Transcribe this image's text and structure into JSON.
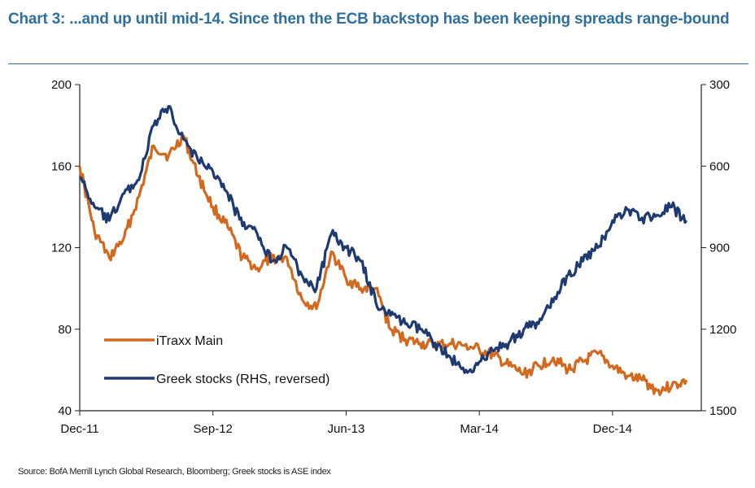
{
  "title": "Chart 3: ...and up until mid-14. Since then the ECB backstop has been keeping spreads range-bound",
  "source": "Source: BofA Merrill Lynch Global Research, Bloomberg; Greek stocks is ASE index",
  "chart_data": {
    "type": "line",
    "title": "Chart 3: ...and up until mid-14. Since then the ECB backstop has been keeping spreads range-bound",
    "xlabel": "",
    "ylabel": "",
    "x_tick_labels": [
      "Dec-11",
      "Sep-12",
      "Jun-13",
      "Mar-14",
      "Dec-14"
    ],
    "x_range": [
      "2011-12",
      "2015-06"
    ],
    "left_axis": {
      "ticks": [
        200,
        160,
        120,
        80,
        40
      ],
      "range": [
        40,
        200
      ]
    },
    "right_axis": {
      "ticks": [
        300,
        600,
        900,
        1200,
        1500
      ],
      "range": [
        300,
        1500
      ],
      "reversed": true
    },
    "grid": false,
    "legend_position": "bottom-left",
    "series": [
      {
        "name": "iTraxx Main",
        "axis": "left",
        "color": "#d2691e",
        "points": [
          [
            "2011-12",
            160
          ],
          [
            "2012-01",
            128
          ],
          [
            "2012-02",
            115
          ],
          [
            "2012-03",
            125
          ],
          [
            "2012-04",
            145
          ],
          [
            "2012-05",
            170
          ],
          [
            "2012-06",
            165
          ],
          [
            "2012-07",
            175
          ],
          [
            "2012-08",
            155
          ],
          [
            "2012-09",
            140
          ],
          [
            "2012-10",
            130
          ],
          [
            "2012-11",
            115
          ],
          [
            "2012-12",
            110
          ],
          [
            "2013-01",
            115
          ],
          [
            "2013-02",
            115
          ],
          [
            "2013-03",
            95
          ],
          [
            "2013-04",
            90
          ],
          [
            "2013-05",
            118
          ],
          [
            "2013-06",
            105
          ],
          [
            "2013-07",
            100
          ],
          [
            "2013-08",
            100
          ],
          [
            "2013-09",
            80
          ],
          [
            "2013-10",
            75
          ],
          [
            "2013-11",
            73
          ],
          [
            "2013-12",
            72
          ],
          [
            "2014-01",
            73
          ],
          [
            "2014-02",
            72
          ],
          [
            "2014-03",
            70
          ],
          [
            "2014-04",
            67
          ],
          [
            "2014-05",
            62
          ],
          [
            "2014-06",
            58
          ],
          [
            "2014-07",
            62
          ],
          [
            "2014-08",
            66
          ],
          [
            "2014-09",
            60
          ],
          [
            "2014-10",
            64
          ],
          [
            "2014-11",
            68
          ],
          [
            "2014-12",
            62
          ],
          [
            "2015-01",
            57
          ],
          [
            "2015-02",
            55
          ],
          [
            "2015-03",
            50
          ],
          [
            "2015-04",
            52
          ],
          [
            "2015-05",
            55
          ]
        ]
      },
      {
        "name": "Greek stocks (RHS, reversed)",
        "axis": "right",
        "color": "#1f3a70",
        "points": [
          [
            "2011-12",
            640
          ],
          [
            "2012-01",
            750
          ],
          [
            "2012-02",
            800
          ],
          [
            "2012-03",
            700
          ],
          [
            "2012-04",
            650
          ],
          [
            "2012-05",
            450
          ],
          [
            "2012-06",
            380
          ],
          [
            "2012-07",
            500
          ],
          [
            "2012-08",
            580
          ],
          [
            "2012-09",
            620
          ],
          [
            "2012-10",
            700
          ],
          [
            "2012-11",
            820
          ],
          [
            "2012-12",
            850
          ],
          [
            "2013-01",
            950
          ],
          [
            "2013-02",
            900
          ],
          [
            "2013-03",
            1000
          ],
          [
            "2013-04",
            1050
          ],
          [
            "2013-05",
            850
          ],
          [
            "2013-06",
            900
          ],
          [
            "2013-07",
            950
          ],
          [
            "2013-08",
            1100
          ],
          [
            "2013-09",
            1150
          ],
          [
            "2013-10",
            1180
          ],
          [
            "2013-11",
            1200
          ],
          [
            "2013-12",
            1250
          ],
          [
            "2014-01",
            1300
          ],
          [
            "2014-02",
            1360
          ],
          [
            "2014-03",
            1320
          ],
          [
            "2014-04",
            1280
          ],
          [
            "2014-05",
            1250
          ],
          [
            "2014-06",
            1200
          ],
          [
            "2014-07",
            1180
          ],
          [
            "2014-08",
            1100
          ],
          [
            "2014-09",
            1000
          ],
          [
            "2014-10",
            950
          ],
          [
            "2014-11",
            900
          ],
          [
            "2014-12",
            800
          ],
          [
            "2015-01",
            760
          ],
          [
            "2015-02",
            790
          ],
          [
            "2015-03",
            780
          ],
          [
            "2015-04",
            750
          ],
          [
            "2015-05",
            800
          ]
        ]
      }
    ]
  }
}
